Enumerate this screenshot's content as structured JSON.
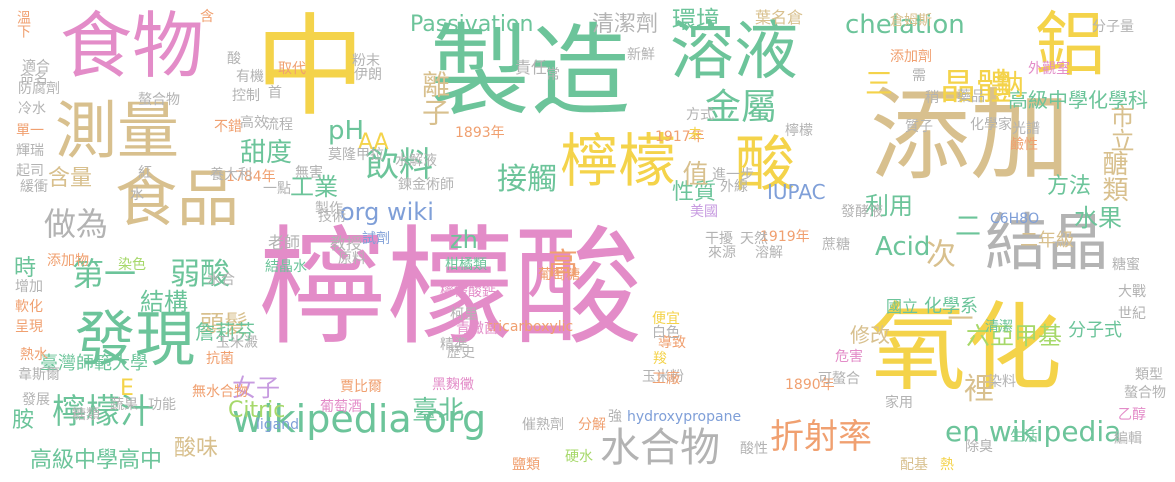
{
  "palette": {
    "pink": "#e38cc8",
    "green": "#6cc49a",
    "tan": "#d8c08e",
    "orange": "#f0a070",
    "yellow": "#f4d34a",
    "blue": "#7f9fd8",
    "gray": "#b3b3b3",
    "lime": "#a6d86a",
    "purple": "#c79be0",
    "background": "#ffffff"
  },
  "words": [
    "檸檬酸",
    "製造",
    "中",
    "添加",
    "氧化",
    "食物",
    "溶液",
    "鋁",
    "測量",
    "食品",
    "結晶",
    "發現",
    "檸檬",
    "酸",
    "晶體",
    "金屬",
    "飲料",
    "wikipedia org",
    "水合物",
    "折射率",
    "en wikipedia",
    "接觸",
    "檸檬汁",
    "Passivation",
    "chelation",
    "環境",
    "清潔劑",
    "做為",
    "第一",
    "弱酸",
    "結構",
    "頭髮",
    "甜度",
    "pH",
    "AA",
    "org wiki",
    "zh",
    "工業",
    "Acid",
    "利用",
    "方法",
    "醣類",
    "市立",
    "高級中學化學科",
    "水果",
    "臺北",
    "酸味",
    "高級中學高中",
    "女子",
    "六亞甲基",
    "Citric",
    "IUPAC",
    "性質",
    "美國",
    "C6H8O",
    "二年級",
    "分子式",
    "化學系",
    "國立",
    "修改",
    "詹莉芬",
    "臺灣師範大學",
    "含量",
    "時",
    "胺",
    "E",
    "值",
    "離子",
    "三",
    "鈉",
    "責任",
    "教授",
    "老師",
    "葉名倉",
    "1893年",
    "1917年",
    "1784年",
    "1890年",
    "1919年",
    "tricarboxylic",
    "hydroxypropane",
    "ligand",
    "結晶水",
    "檸檬酸鈣",
    "青黴菌",
    "柑橘類",
    "玉米粉",
    "葡萄糖",
    "黑麴黴",
    "賈比爾",
    "葡萄酒",
    "催熟劑",
    "分解",
    "強",
    "硬水",
    "鹽類",
    "蔗糖",
    "糖蜜",
    "發酵液",
    "分子量",
    "倉姆斯",
    "添加劑",
    "外觀室",
    "化學家",
    "藥品",
    "質子",
    "光譜",
    "鹼性",
    "危害",
    "可螯合",
    "家用",
    "除臭",
    "生活",
    "染料",
    "清潔",
    "世紀",
    "大戰",
    "螯合物",
    "類型",
    "乙醇",
    "編輯",
    "配基",
    "熱",
    "酸性",
    "便宜",
    "導致",
    "工廠",
    "白色",
    "羧",
    "柯里",
    "精準",
    "歷史",
    "功能",
    "蔬果",
    "染色",
    "無水合物",
    "抗菌",
    "添加物",
    "增加",
    "軟化",
    "呈現",
    "熱水",
    "韋斯爾",
    "發展",
    "糖類",
    "水合",
    "玉米澱",
    "溫下",
    "適合",
    "命名",
    "防腐劑",
    "冷水",
    "單一",
    "輝瑞",
    "起司",
    "緩衝",
    "紅",
    "水",
    "無害",
    "一點",
    "製作",
    "技術",
    "原料",
    "來源",
    "溶解",
    "天然",
    "干擾",
    "進一步",
    "外線",
    "水解液",
    "養大利",
    "莫隆甲拉",
    "試劑",
    "鍊金術師",
    "高效",
    "流程",
    "控制",
    "有機",
    "取代",
    "首",
    "粉末",
    "常",
    "不錯",
    "螯合物",
    "酸",
    "伊朗",
    "新鮮",
    "需",
    "稍",
    "檸檬",
    "方式",
    "未",
    "含",
    "高",
    "次",
    "裡",
    "一",
    "二"
  ]
}
